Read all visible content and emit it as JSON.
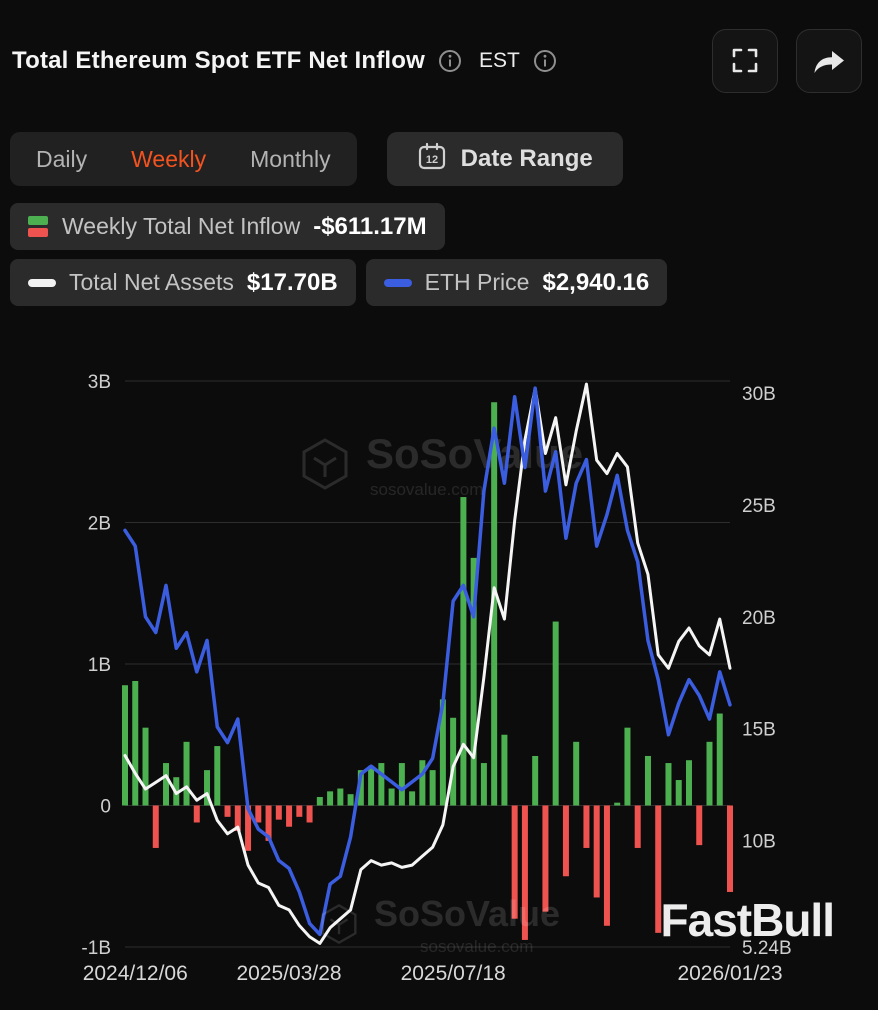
{
  "header": {
    "title": "Total Ethereum Spot ETF Net Inflow",
    "est_label": "EST"
  },
  "controls": {
    "tabs": [
      {
        "label": "Daily",
        "active": false
      },
      {
        "label": "Weekly",
        "active": true
      },
      {
        "label": "Monthly",
        "active": false
      }
    ],
    "date_range_label": "Date Range",
    "active_tab_color": "#f4531f"
  },
  "legend": {
    "weekly_net_inflow": {
      "label": "Weekly Total Net Inflow",
      "value": "-$611.17M"
    },
    "total_net_assets": {
      "label": "Total Net Assets",
      "value": "$17.70B"
    },
    "eth_price": {
      "label": "ETH Price",
      "value": "$2,940.16"
    }
  },
  "watermark": {
    "brand": "SoSoValue",
    "domain": "sosovalue.com"
  },
  "footer_brand": "FastBull",
  "chart_data": {
    "type": "bar",
    "title": "Total Ethereum Spot ETF Net Inflow (Weekly)",
    "x_labels": [
      "2024/12/06",
      "2025/03/28",
      "2025/07/18",
      "2026/01/23"
    ],
    "x_label_indices": [
      1,
      16,
      32,
      59
    ],
    "left_axis": {
      "ticks": [
        "3B",
        "2B",
        "1B",
        "0",
        "-1B"
      ],
      "values": [
        3,
        2,
        1,
        0,
        -1
      ],
      "range": [
        -1,
        3
      ],
      "unit": "USD billions"
    },
    "right_axis": {
      "ticks": [
        "30B",
        "25B",
        "20B",
        "15B",
        "10B",
        "5.24B"
      ],
      "values": [
        30,
        25,
        20,
        15,
        10,
        5.24
      ],
      "range": [
        5.24,
        30.54
      ],
      "unit": "USD billions"
    },
    "eth_axis_range": [
      1400,
      5000
    ],
    "grid": true,
    "legend_position": "top-left",
    "colors": {
      "grid": "#2e2e2e",
      "bar_positive": "#4caf50",
      "bar_negative": "#ef5350",
      "net_assets_line": "#f5f5f5",
      "eth_line": "#3b5de0"
    },
    "series": [
      {
        "name": "Weekly Total Net Inflow",
        "type": "bar",
        "axis": "left",
        "values": [
          0.85,
          0.88,
          0.55,
          -0.3,
          0.3,
          0.2,
          0.45,
          -0.12,
          0.25,
          0.42,
          -0.08,
          -0.18,
          -0.32,
          -0.12,
          -0.25,
          -0.1,
          -0.15,
          -0.08,
          -0.12,
          0.06,
          0.1,
          0.12,
          0.08,
          0.25,
          0.28,
          0.3,
          0.12,
          0.3,
          0.1,
          0.32,
          0.25,
          0.75,
          0.62,
          2.18,
          1.75,
          0.3,
          2.85,
          0.5,
          -0.8,
          -0.95,
          0.35,
          -0.75,
          1.3,
          -0.5,
          0.45,
          -0.3,
          -0.65,
          -0.85,
          0.02,
          0.55,
          -0.3,
          0.35,
          -0.9,
          0.3,
          0.18,
          0.32,
          -0.28,
          0.45,
          0.65,
          -0.611
        ]
      },
      {
        "name": "Total Net Assets",
        "type": "line",
        "axis": "right",
        "values": [
          13.8,
          13.0,
          12.3,
          12.6,
          12.9,
          12.1,
          12.4,
          11.8,
          12.1,
          10.9,
          10.3,
          10.6,
          8.9,
          8.1,
          7.9,
          7.1,
          6.9,
          6.2,
          5.7,
          5.4,
          6.1,
          6.5,
          6.9,
          8.7,
          9.1,
          8.9,
          9.0,
          8.8,
          8.9,
          9.3,
          9.7,
          10.7,
          13.3,
          14.3,
          13.7,
          17.3,
          21.3,
          19.9,
          24.3,
          27.9,
          30.2,
          27.3,
          28.9,
          25.9,
          28.3,
          30.4,
          27.0,
          26.4,
          27.3,
          26.7,
          23.3,
          21.9,
          18.3,
          17.7,
          18.9,
          19.5,
          18.7,
          18.3,
          19.9,
          17.7
        ]
      },
      {
        "name": "ETH Price",
        "type": "line",
        "axis": "eth",
        "values": [
          4050,
          3950,
          3500,
          3400,
          3700,
          3300,
          3400,
          3150,
          3350,
          2800,
          2700,
          2850,
          2280,
          2150,
          2100,
          1950,
          1900,
          1750,
          1550,
          1480,
          1800,
          1850,
          2100,
          2500,
          2550,
          2500,
          2450,
          2400,
          2450,
          2500,
          2600,
          2950,
          3600,
          3700,
          3500,
          4300,
          4700,
          4350,
          4900,
          4450,
          4955,
          4300,
          4550,
          4000,
          4350,
          4500,
          3950,
          4150,
          4400,
          4050,
          3850,
          3350,
          3100,
          2750,
          2950,
          3100,
          3000,
          2850,
          3150,
          2940.16
        ]
      }
    ]
  }
}
